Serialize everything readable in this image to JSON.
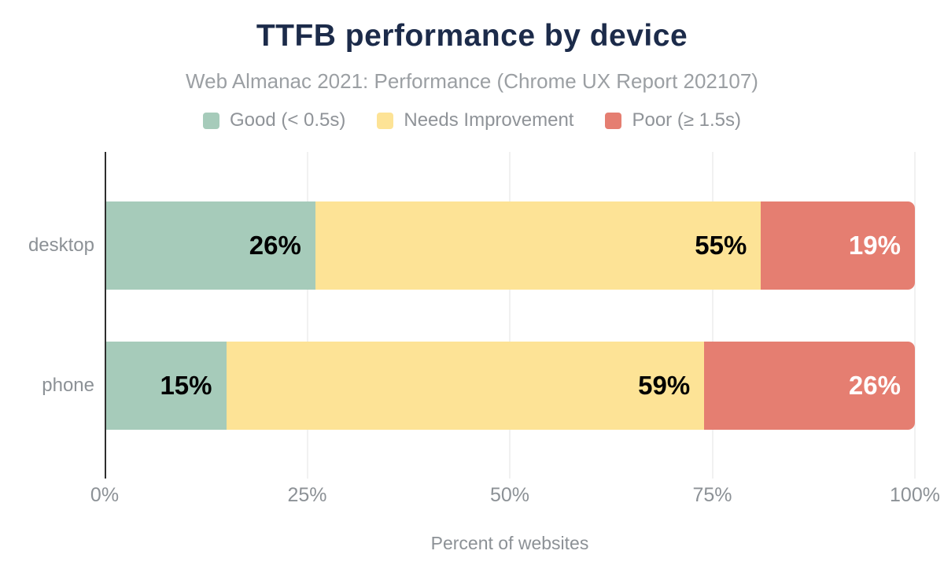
{
  "chart_data": {
    "type": "bar",
    "orientation": "horizontal",
    "stacked": true,
    "title": "TTFB performance by device",
    "subtitle": "Web Almanac 2021: Performance (Chrome UX Report 202107)",
    "categories": [
      "desktop",
      "phone"
    ],
    "series": [
      {
        "name": "Good (< 0.5s)",
        "color": "#a6cbba",
        "label_color": "#000000",
        "values": [
          26,
          15
        ]
      },
      {
        "name": "Needs Improvement",
        "color": "#fde396",
        "label_color": "#000000",
        "values": [
          55,
          59
        ]
      },
      {
        "name": "Poor (≥ 1.5s)",
        "color": "#e57e71",
        "label_color": "#ffffff",
        "values": [
          19,
          26
        ]
      }
    ],
    "value_suffix": "%",
    "xlabel": "Percent of websites",
    "x_ticks": [
      "0%",
      "25%",
      "50%",
      "75%",
      "100%"
    ],
    "x_tick_values": [
      0,
      25,
      50,
      75,
      100
    ],
    "xlim": [
      0,
      100
    ],
    "grid": "vertical",
    "legend_position": "top",
    "colors": {
      "title": "#1c2b4a",
      "subtitle_text": "#9b9fa3",
      "axis_text": "#8c9196",
      "gridline": "#f1f1f1",
      "axis_line": "#2e2e2e",
      "background": "#ffffff"
    }
  }
}
